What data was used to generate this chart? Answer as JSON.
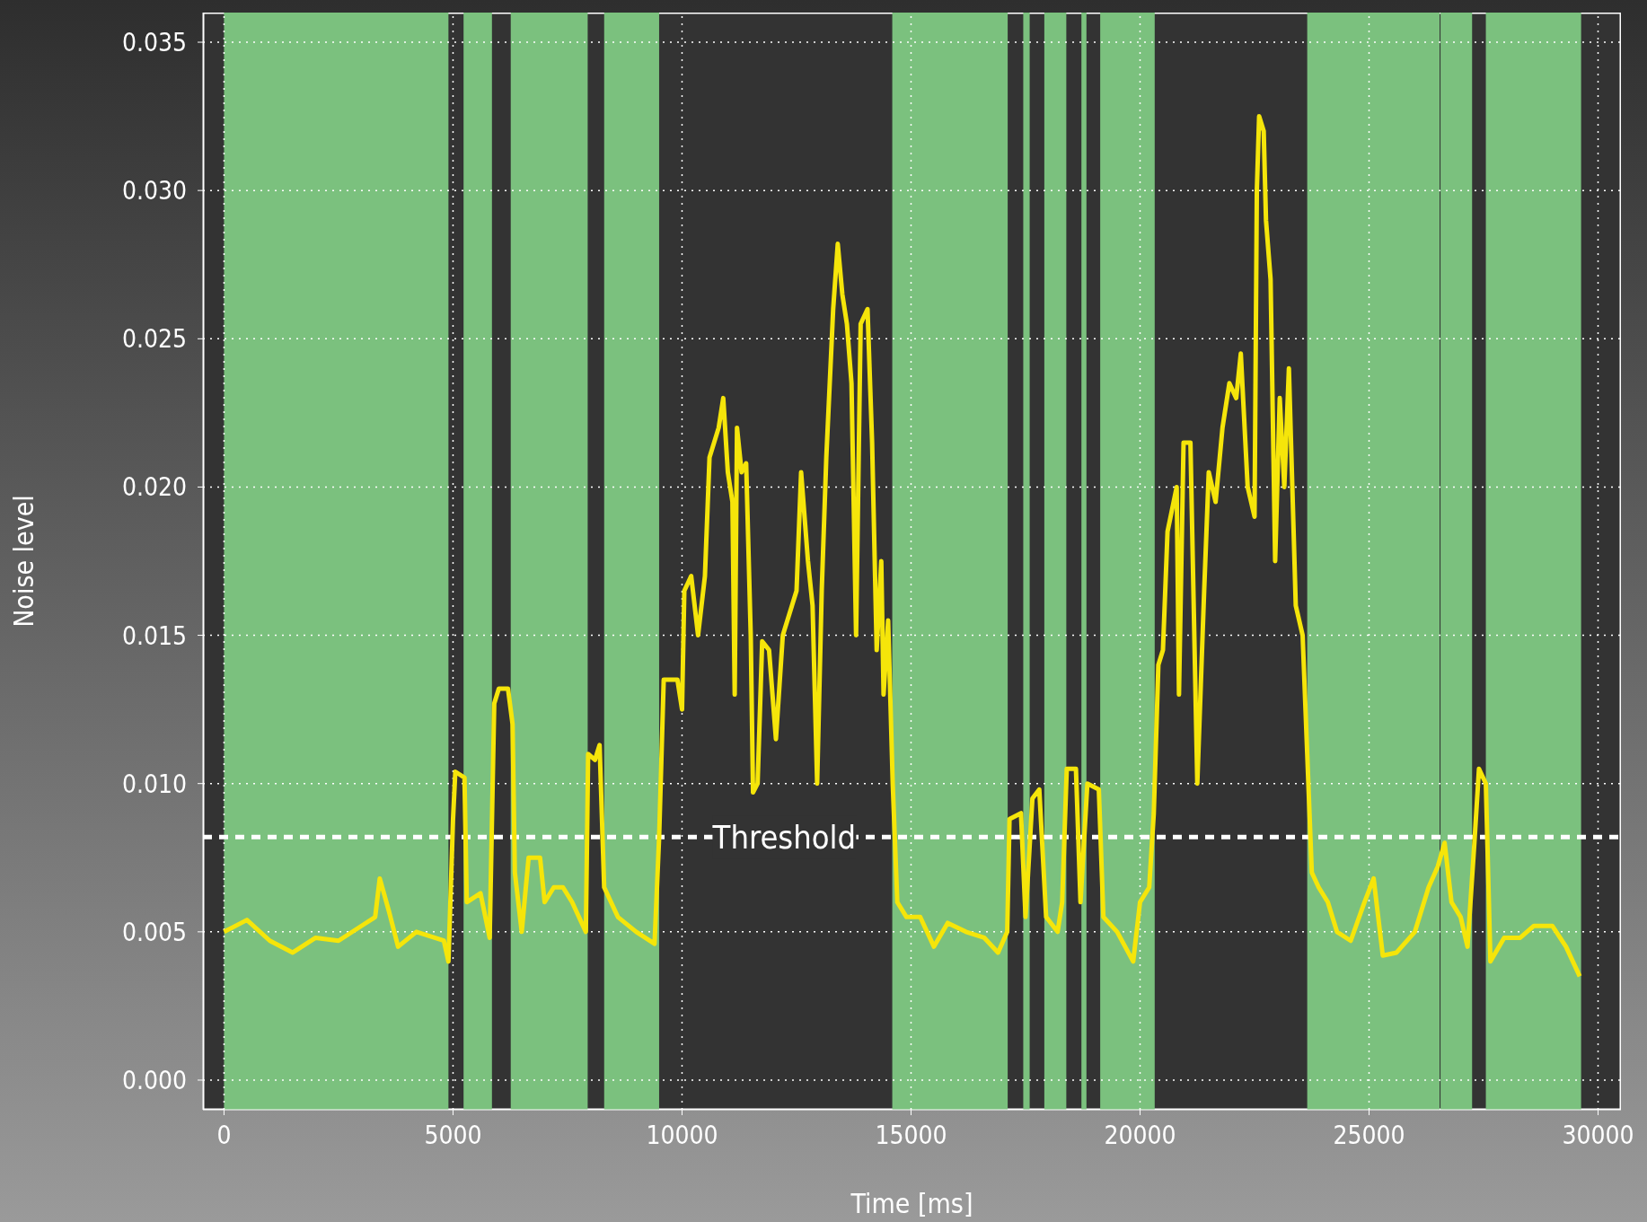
{
  "chart_data": {
    "type": "line",
    "xlabel": "Time [ms]",
    "ylabel": "Noise level",
    "x": [
      0,
      500,
      1000,
      1500,
      2000,
      2500,
      3000,
      3300,
      3400,
      3600,
      3800,
      4200,
      4800,
      4900,
      5000,
      5050,
      5250,
      5300,
      5600,
      5800,
      5900,
      6000,
      6200,
      6300,
      6350,
      6500,
      6650,
      6900,
      7000,
      7200,
      7400,
      7600,
      7900,
      7950,
      8100,
      8200,
      8300,
      8600,
      9000,
      9400,
      9500,
      9600,
      9900,
      10000,
      10050,
      10200,
      10350,
      10500,
      10600,
      10800,
      10900,
      11000,
      11100,
      11150,
      11200,
      11300,
      11400,
      11500,
      11550,
      11650,
      11750,
      11900,
      12050,
      12200,
      12400,
      12500,
      12600,
      12750,
      12850,
      12950,
      13050,
      13150,
      13300,
      13400,
      13500,
      13600,
      13700,
      13800,
      13900,
      14050,
      14150,
      14250,
      14350,
      14400,
      14500,
      14600,
      14700,
      14900,
      15200,
      15500,
      15800,
      16200,
      16600,
      16900,
      17100,
      17150,
      17400,
      17500,
      17650,
      17800,
      17950,
      18200,
      18300,
      18400,
      18600,
      18700,
      18850,
      19100,
      19200,
      19500,
      19850,
      20000,
      20200,
      20300,
      20400,
      20500,
      20600,
      20800,
      20850,
      20950,
      21100,
      21250,
      21400,
      21500,
      21650,
      21800,
      21950,
      22100,
      22200,
      22350,
      22500,
      22550,
      22600,
      22700,
      22750,
      22850,
      22950,
      23050,
      23150,
      23250,
      23400,
      23550,
      23650,
      23750,
      23900,
      24100,
      24300,
      24600,
      24900,
      25100,
      25300,
      25600,
      26000,
      26300,
      26500,
      26650,
      26800,
      27000,
      27150,
      27300,
      27400,
      27550,
      27650,
      27950,
      28300,
      28600,
      29000,
      29300,
      29600
    ],
    "series": [
      {
        "color": "#f5e50a",
        "values": [
          0.005,
          0.0054,
          0.0047,
          0.0043,
          0.0048,
          0.0047,
          0.0052,
          0.0055,
          0.0068,
          0.0057,
          0.0045,
          0.005,
          0.0047,
          0.004,
          0.0088,
          0.0104,
          0.0102,
          0.006,
          0.0063,
          0.0048,
          0.0127,
          0.0132,
          0.0132,
          0.012,
          0.007,
          0.005,
          0.0075,
          0.0075,
          0.006,
          0.0065,
          0.0065,
          0.006,
          0.005,
          0.011,
          0.0108,
          0.0113,
          0.0065,
          0.0055,
          0.005,
          0.0046,
          0.0082,
          0.0135,
          0.0135,
          0.0125,
          0.0165,
          0.017,
          0.015,
          0.017,
          0.021,
          0.022,
          0.023,
          0.0205,
          0.0195,
          0.013,
          0.022,
          0.0205,
          0.0208,
          0.015,
          0.0097,
          0.01,
          0.0148,
          0.0145,
          0.0115,
          0.015,
          0.016,
          0.0165,
          0.0205,
          0.0175,
          0.016,
          0.01,
          0.0165,
          0.021,
          0.026,
          0.0282,
          0.0265,
          0.0255,
          0.0235,
          0.015,
          0.0255,
          0.026,
          0.0215,
          0.0145,
          0.0175,
          0.013,
          0.0155,
          0.01,
          0.006,
          0.0055,
          0.0055,
          0.0045,
          0.0053,
          0.005,
          0.0048,
          0.0043,
          0.005,
          0.0088,
          0.009,
          0.0055,
          0.0095,
          0.0098,
          0.0055,
          0.005,
          0.006,
          0.0105,
          0.0105,
          0.006,
          0.01,
          0.0098,
          0.0055,
          0.005,
          0.004,
          0.006,
          0.0065,
          0.009,
          0.014,
          0.0145,
          0.0185,
          0.02,
          0.013,
          0.0215,
          0.0215,
          0.01,
          0.0165,
          0.0205,
          0.0195,
          0.022,
          0.0235,
          0.023,
          0.0245,
          0.02,
          0.019,
          0.03,
          0.0325,
          0.032,
          0.029,
          0.027,
          0.0175,
          0.023,
          0.02,
          0.024,
          0.016,
          0.015,
          0.011,
          0.007,
          0.0065,
          0.006,
          0.005,
          0.0047,
          0.006,
          0.0068,
          0.0042,
          0.0043,
          0.005,
          0.0065,
          0.0072,
          0.008,
          0.006,
          0.0055,
          0.0045,
          0.008,
          0.0105,
          0.01,
          0.004,
          0.0048,
          0.0048,
          0.0052,
          0.0052,
          0.0045,
          0.0035
        ]
      }
    ],
    "xlim": [
      -460,
      30500
    ],
    "xticks": [
      0,
      5000,
      10000,
      15000,
      20000,
      25000,
      30000
    ],
    "ylim": [
      -0.001,
      0.036
    ],
    "yticks": [
      {
        "value": 0,
        "label": "0.000"
      },
      {
        "value": 0.005,
        "label": "0.005"
      },
      {
        "value": 0.01,
        "label": "0.010"
      },
      {
        "value": 0.015,
        "label": "0.015"
      },
      {
        "value": 0.02,
        "label": "0.020"
      },
      {
        "value": 0.025,
        "label": "0.025"
      },
      {
        "value": 0.03,
        "label": "0.030"
      },
      {
        "value": 0.035,
        "label": "0.035"
      }
    ],
    "ref_lines": [
      {
        "axis": "y",
        "value": 0.0082,
        "label": "Threshold",
        "color": "#ffffff",
        "line_style": "dashed"
      }
    ],
    "bands": [
      {
        "axis": "x",
        "from": 0,
        "to": 4900,
        "color": "#7bc17e"
      },
      {
        "axis": "x",
        "from": 5230,
        "to": 5850,
        "color": "#7bc17e"
      },
      {
        "axis": "x",
        "from": 6260,
        "to": 7940,
        "color": "#7bc17e"
      },
      {
        "axis": "x",
        "from": 8300,
        "to": 9500,
        "color": "#7bc17e"
      },
      {
        "axis": "x",
        "from": 14590,
        "to": 17110,
        "color": "#7bc17e"
      },
      {
        "axis": "x",
        "from": 17450,
        "to": 17590,
        "color": "#7bc17e"
      },
      {
        "axis": "x",
        "from": 17910,
        "to": 18390,
        "color": "#7bc17e"
      },
      {
        "axis": "x",
        "from": 18720,
        "to": 18830,
        "color": "#7bc17e"
      },
      {
        "axis": "x",
        "from": 19130,
        "to": 20320,
        "color": "#7bc17e"
      },
      {
        "axis": "x",
        "from": 23650,
        "to": 26540,
        "color": "#7bc17e"
      },
      {
        "axis": "x",
        "from": 26560,
        "to": 27250,
        "color": "#7bc17e"
      },
      {
        "axis": "x",
        "from": 27550,
        "to": 29630,
        "color": "#7bc17e"
      }
    ],
    "grid": true,
    "marker": "none",
    "line_style": "solid"
  }
}
